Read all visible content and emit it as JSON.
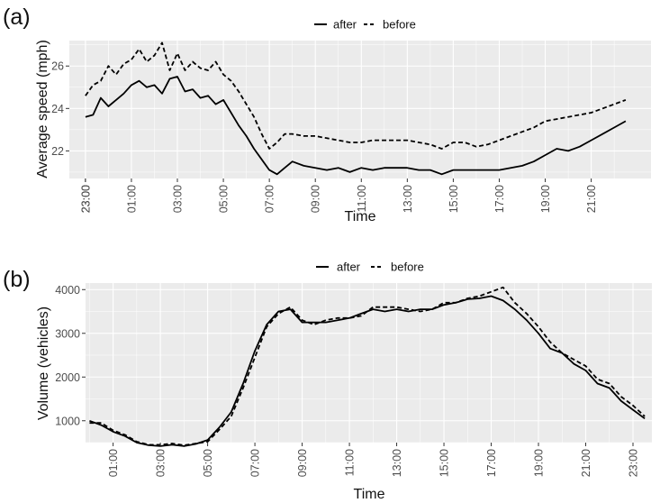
{
  "chart_data": [
    {
      "panel_label": "(a)",
      "type": "line",
      "xlabel": "Time",
      "ylabel": "Average speed (mph)",
      "x_ticks": [
        "23:00",
        "01:00",
        "03:00",
        "05:00",
        "07:00",
        "09:00",
        "11:00",
        "13:00",
        "15:00",
        "17:00",
        "19:00",
        "21:00",
        "23:00"
      ],
      "y_ticks": [
        22,
        24,
        26
      ],
      "ylim": [
        20.7,
        27.2
      ],
      "legend_position": "top",
      "grid": true,
      "series": [
        {
          "name": "after",
          "line_style": "solid",
          "x": [
            "23:00",
            "23:20",
            "23:40",
            "00:00",
            "00:20",
            "00:40",
            "01:00",
            "01:20",
            "01:40",
            "02:00",
            "02:20",
            "02:40",
            "03:00",
            "03:20",
            "03:40",
            "04:00",
            "04:20",
            "04:40",
            "05:00",
            "05:20",
            "05:40",
            "06:00",
            "06:20",
            "06:40",
            "07:00",
            "07:20",
            "07:40",
            "08:00",
            "08:30",
            "09:00",
            "09:30",
            "10:00",
            "10:30",
            "11:00",
            "11:30",
            "12:00",
            "12:30",
            "13:00",
            "13:30",
            "14:00",
            "14:30",
            "15:00",
            "15:30",
            "16:00",
            "16:30",
            "17:00",
            "17:30",
            "18:00",
            "18:30",
            "19:00",
            "19:30",
            "20:00",
            "20:30",
            "21:00",
            "21:30",
            "22:00",
            "22:30"
          ],
          "values": [
            23.6,
            23.7,
            24.5,
            24.1,
            24.4,
            24.7,
            25.1,
            25.3,
            25.0,
            25.1,
            24.7,
            25.4,
            25.5,
            24.8,
            24.9,
            24.5,
            24.6,
            24.2,
            24.4,
            23.8,
            23.2,
            22.7,
            22.1,
            21.6,
            21.1,
            20.9,
            21.2,
            21.5,
            21.3,
            21.2,
            21.1,
            21.2,
            21.0,
            21.2,
            21.1,
            21.2,
            21.2,
            21.2,
            21.1,
            21.1,
            20.9,
            21.1,
            21.1,
            21.1,
            21.1,
            21.1,
            21.2,
            21.3,
            21.5,
            21.8,
            22.1,
            22.0,
            22.2,
            22.5,
            22.8,
            23.1,
            23.4
          ]
        },
        {
          "name": "before",
          "line_style": "dashed",
          "x": [
            "23:00",
            "23:20",
            "23:40",
            "00:00",
            "00:20",
            "00:40",
            "01:00",
            "01:20",
            "01:40",
            "02:00",
            "02:20",
            "02:40",
            "03:00",
            "03:20",
            "03:40",
            "04:00",
            "04:20",
            "04:40",
            "05:00",
            "05:20",
            "05:40",
            "06:00",
            "06:20",
            "06:40",
            "07:00",
            "07:20",
            "07:40",
            "08:00",
            "08:30",
            "09:00",
            "09:30",
            "10:00",
            "10:30",
            "11:00",
            "11:30",
            "12:00",
            "12:30",
            "13:00",
            "13:30",
            "14:00",
            "14:30",
            "15:00",
            "15:30",
            "16:00",
            "16:30",
            "17:00",
            "17:30",
            "18:00",
            "18:30",
            "19:00",
            "19:30",
            "20:00",
            "20:30",
            "21:00",
            "21:30",
            "22:00",
            "22:30"
          ],
          "values": [
            24.6,
            25.1,
            25.3,
            26.0,
            25.6,
            26.1,
            26.3,
            26.8,
            26.2,
            26.5,
            27.1,
            25.8,
            26.6,
            25.8,
            26.2,
            25.9,
            25.8,
            26.2,
            25.6,
            25.3,
            24.8,
            24.2,
            23.6,
            22.8,
            22.1,
            22.4,
            22.8,
            22.8,
            22.7,
            22.7,
            22.6,
            22.5,
            22.4,
            22.4,
            22.5,
            22.5,
            22.5,
            22.5,
            22.4,
            22.3,
            22.1,
            22.4,
            22.4,
            22.2,
            22.3,
            22.5,
            22.7,
            22.9,
            23.1,
            23.4,
            23.5,
            23.6,
            23.7,
            23.8,
            24.0,
            24.2,
            24.4
          ]
        }
      ]
    },
    {
      "panel_label": "(b)",
      "type": "line",
      "xlabel": "Time",
      "ylabel": "Volume (vehicles)",
      "x_ticks": [
        "01:00",
        "03:00",
        "05:00",
        "07:00",
        "09:00",
        "11:00",
        "13:00",
        "15:00",
        "17:00",
        "19:00",
        "21:00",
        "23:00"
      ],
      "y_ticks": [
        1000,
        2000,
        3000,
        4000
      ],
      "ylim": [
        500,
        4150
      ],
      "legend_position": "top",
      "grid": true,
      "series": [
        {
          "name": "after",
          "line_style": "solid",
          "x": [
            "00:00",
            "00:30",
            "01:00",
            "01:30",
            "02:00",
            "02:30",
            "03:00",
            "03:30",
            "04:00",
            "04:30",
            "05:00",
            "05:30",
            "06:00",
            "06:30",
            "07:00",
            "07:30",
            "08:00",
            "08:30",
            "09:00",
            "09:30",
            "10:00",
            "10:30",
            "11:00",
            "11:30",
            "12:00",
            "12:30",
            "13:00",
            "13:30",
            "14:00",
            "14:30",
            "15:00",
            "15:30",
            "16:00",
            "16:30",
            "17:00",
            "17:30",
            "18:00",
            "18:30",
            "19:00",
            "19:30",
            "20:00",
            "20:30",
            "21:00",
            "21:30",
            "22:00",
            "22:30",
            "23:00",
            "23:30"
          ],
          "values": [
            1000,
            900,
            750,
            650,
            500,
            440,
            420,
            450,
            420,
            470,
            560,
            850,
            1200,
            1850,
            2600,
            3200,
            3500,
            3550,
            3250,
            3250,
            3250,
            3300,
            3350,
            3450,
            3550,
            3500,
            3550,
            3500,
            3550,
            3550,
            3650,
            3700,
            3780,
            3800,
            3850,
            3750,
            3550,
            3300,
            3000,
            2650,
            2550,
            2300,
            2150,
            1850,
            1750,
            1450,
            1250,
            1050
          ]
        },
        {
          "name": "before",
          "line_style": "dashed",
          "x": [
            "00:00",
            "00:30",
            "01:00",
            "01:30",
            "02:00",
            "02:30",
            "03:00",
            "03:30",
            "04:00",
            "04:30",
            "05:00",
            "05:30",
            "06:00",
            "06:30",
            "07:00",
            "07:30",
            "08:00",
            "08:30",
            "09:00",
            "09:30",
            "10:00",
            "10:30",
            "11:00",
            "11:30",
            "12:00",
            "12:30",
            "13:00",
            "13:30",
            "14:00",
            "14:30",
            "15:00",
            "15:30",
            "16:00",
            "16:30",
            "17:00",
            "17:30",
            "18:00",
            "18:30",
            "19:00",
            "19:30",
            "20:00",
            "20:30",
            "21:00",
            "21:30",
            "22:00",
            "22:30",
            "23:00",
            "23:30"
          ],
          "values": [
            950,
            950,
            780,
            680,
            520,
            450,
            450,
            480,
            440,
            480,
            520,
            800,
            1100,
            1750,
            2450,
            3150,
            3450,
            3600,
            3300,
            3200,
            3300,
            3350,
            3350,
            3400,
            3600,
            3600,
            3600,
            3550,
            3500,
            3550,
            3700,
            3700,
            3800,
            3850,
            3950,
            4050,
            3700,
            3450,
            3150,
            2800,
            2550,
            2400,
            2250,
            1950,
            1850,
            1550,
            1350,
            1100
          ]
        }
      ]
    }
  ]
}
